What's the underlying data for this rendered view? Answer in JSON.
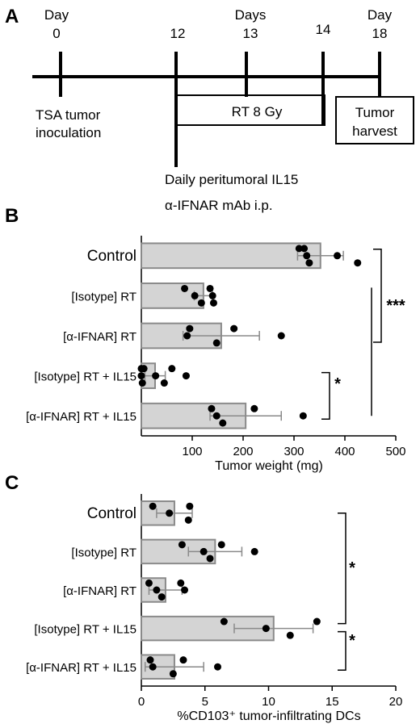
{
  "panel_a": {
    "label": "A",
    "day0_top": "Day",
    "day0_num": "0",
    "day12_num": "12",
    "days_label": "Days",
    "day13_num": "13",
    "day14_num": "14",
    "day18_top": "Day",
    "day18_num": "18",
    "inoc_line1": "TSA tumor",
    "inoc_line2": "inoculation",
    "rt_label": "RT  8 Gy",
    "harvest_line1": "Tumor",
    "harvest_line2": "harvest",
    "il15_label": "Daily peritumoral IL15",
    "ifnar_label": "α-IFNAR mAb i.p."
  },
  "chart_data": [
    {
      "panel": "B",
      "type": "bar",
      "orientation": "horizontal",
      "categories": [
        "Control",
        "[Isotype] RT",
        "[α-IFNAR] RT",
        "[Isotype] RT + IL15",
        "[α-IFNAR] RT + IL15"
      ],
      "values": [
        352,
        122,
        157,
        27,
        205
      ],
      "errors": [
        45,
        18,
        75,
        20,
        70
      ],
      "points": [
        [
          320,
          325,
          330,
          310,
          385,
          425
        ],
        [
          85,
          105,
          118,
          135,
          140,
          142
        ],
        [
          95,
          90,
          148,
          182,
          275
        ],
        [
          0,
          0,
          2,
          5,
          28,
          45,
          60,
          88
        ],
        [
          138,
          148,
          160,
          222,
          318
        ]
      ],
      "xlabel": "Tumor weight (mg)",
      "xlim": [
        0,
        500
      ],
      "xticks": [
        "100",
        "200",
        "300",
        "400",
        "500"
      ],
      "significance": [
        {
          "label": "***"
        },
        {
          "label": "*"
        }
      ]
    },
    {
      "panel": "C",
      "type": "bar",
      "orientation": "horizontal",
      "categories": [
        "Control",
        "[Isotype] RT",
        "[α-IFNAR] RT",
        "[Isotype] RT + IL15",
        "[α-IFNAR] RT + IL15"
      ],
      "values": [
        2.6,
        5.8,
        1.9,
        10.4,
        2.6
      ],
      "errors": [
        1.4,
        2.1,
        1.3,
        3.1,
        2.3
      ],
      "points": [
        [
          0.9,
          2.2,
          3.7,
          3.8
        ],
        [
          3.2,
          4.9,
          5.4,
          6.3,
          8.9
        ],
        [
          0.6,
          1.2,
          1.6,
          3.1,
          3.4
        ],
        [
          6.5,
          9.8,
          11.7,
          13.8
        ],
        [
          0.7,
          0.9,
          2.5,
          3.3,
          6.0
        ]
      ],
      "xlabel": "%CD103⁺ tumor-infiltrating DCs",
      "xlim": [
        0,
        20
      ],
      "xticks": [
        "0",
        "5",
        "10",
        "15",
        "20"
      ],
      "significance": [
        {
          "label": "*"
        },
        {
          "label": "*"
        }
      ]
    }
  ],
  "panel_b_label": "B",
  "panel_c_label": "C",
  "colors": {
    "bar_fill": "#d4d4d4",
    "bar_stroke": "#8a8a8a",
    "error": "#8a8a8a",
    "point": "#000000"
  }
}
